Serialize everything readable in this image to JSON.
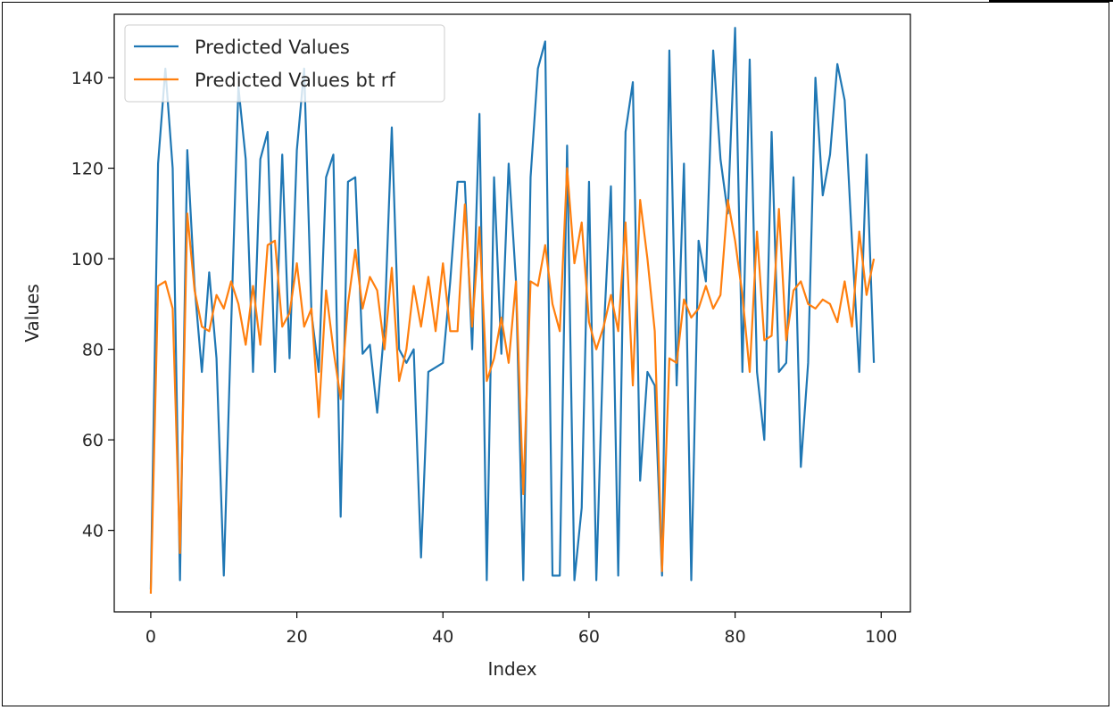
{
  "chart_data": {
    "type": "line",
    "title": "",
    "xlabel": "Index",
    "ylabel": "Values",
    "xlim": [
      -5,
      104
    ],
    "ylim": [
      22,
      154
    ],
    "xticks": [
      0,
      20,
      40,
      60,
      80,
      100
    ],
    "yticks": [
      40,
      60,
      80,
      100,
      120,
      140
    ],
    "grid": false,
    "legend": "top-left",
    "series": [
      {
        "name": "Predicted Values",
        "color": "#1f77b4",
        "x": [
          0,
          1,
          2,
          3,
          4,
          5,
          6,
          7,
          8,
          9,
          10,
          11,
          12,
          13,
          14,
          15,
          16,
          17,
          18,
          19,
          20,
          21,
          22,
          23,
          24,
          25,
          26,
          27,
          28,
          29,
          30,
          31,
          32,
          33,
          34,
          35,
          36,
          37,
          38,
          39,
          40,
          41,
          42,
          43,
          44,
          45,
          46,
          47,
          48,
          49,
          50,
          51,
          52,
          53,
          54,
          55,
          56,
          57,
          58,
          59,
          60,
          61,
          62,
          63,
          64,
          65,
          66,
          67,
          68,
          69,
          70,
          71,
          72,
          73,
          74,
          75,
          76,
          77,
          78,
          79,
          80,
          81,
          82,
          83,
          84,
          85,
          86,
          87,
          88,
          89,
          90,
          91,
          92,
          93,
          94,
          95,
          96,
          97,
          98,
          99
        ],
        "values": [
          27,
          121,
          142,
          120,
          29,
          124,
          94,
          75,
          97,
          78,
          30,
          85,
          138,
          122,
          75,
          122,
          128,
          75,
          123,
          78,
          124,
          142,
          88,
          75,
          118,
          123,
          43,
          117,
          118,
          79,
          81,
          66,
          85,
          129,
          80,
          77,
          80,
          34,
          75,
          76,
          77,
          95,
          117,
          117,
          80,
          132,
          29,
          118,
          79,
          121,
          95,
          29,
          118,
          142,
          148,
          30,
          30,
          125,
          29,
          45,
          117,
          29,
          83,
          116,
          30,
          128,
          139,
          51,
          75,
          72,
          30,
          146,
          72,
          121,
          29,
          104,
          95,
          146,
          122,
          110,
          151,
          75,
          144,
          75,
          60,
          128,
          75,
          77,
          118,
          54,
          77,
          140,
          114,
          123,
          143,
          135,
          104,
          75,
          123,
          77
        ]
      },
      {
        "name": "Predicted Values bt rf",
        "color": "#ff7f0e",
        "x": [
          0,
          1,
          2,
          3,
          4,
          5,
          6,
          7,
          8,
          9,
          10,
          11,
          12,
          13,
          14,
          15,
          16,
          17,
          18,
          19,
          20,
          21,
          22,
          23,
          24,
          25,
          26,
          27,
          28,
          29,
          30,
          31,
          32,
          33,
          34,
          35,
          36,
          37,
          38,
          39,
          40,
          41,
          42,
          43,
          44,
          45,
          46,
          47,
          48,
          49,
          50,
          51,
          52,
          53,
          54,
          55,
          56,
          57,
          58,
          59,
          60,
          61,
          62,
          63,
          64,
          65,
          66,
          67,
          68,
          69,
          70,
          71,
          72,
          73,
          74,
          75,
          76,
          77,
          78,
          79,
          80,
          81,
          82,
          83,
          84,
          85,
          86,
          87,
          88,
          89,
          90,
          91,
          92,
          93,
          94,
          95,
          96,
          97,
          98,
          99
        ],
        "values": [
          26,
          94,
          95,
          89,
          35,
          110,
          93,
          85,
          84,
          92,
          89,
          95,
          90,
          81,
          94,
          81,
          103,
          104,
          85,
          88,
          99,
          85,
          89,
          65,
          93,
          80,
          69,
          90,
          102,
          89,
          96,
          93,
          80,
          98,
          73,
          80,
          94,
          85,
          96,
          84,
          99,
          84,
          84,
          112,
          85,
          107,
          73,
          78,
          87,
          77,
          95,
          48,
          95,
          94,
          103,
          90,
          84,
          120,
          99,
          108,
          86,
          80,
          85,
          92,
          84,
          108,
          72,
          113,
          100,
          84,
          31,
          78,
          77,
          91,
          87,
          89,
          94,
          89,
          92,
          113,
          104,
          92,
          75,
          106,
          82,
          83,
          111,
          82,
          93,
          95,
          90,
          89,
          91,
          90,
          86,
          95,
          85,
          106,
          92,
          100
        ]
      }
    ]
  }
}
